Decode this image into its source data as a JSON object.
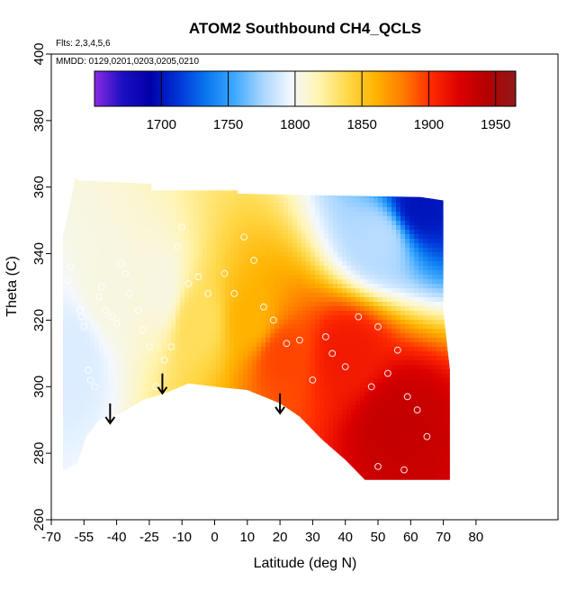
{
  "chart_data": {
    "type": "heatmap",
    "title": "ATOM2 Southbound CH4_QCLS",
    "annotations": [
      "Flts: 2,3,4,5,6",
      "MMDD: 0129,0201,0203,0205,0210"
    ],
    "xlabel": "Latitude (deg N)",
    "ylabel": "Theta (C)",
    "xlim": [
      -70,
      80
    ],
    "ylim": [
      260,
      400
    ],
    "x_tick_labels": [
      -70,
      -55,
      -40,
      -25,
      -10,
      0,
      10,
      20,
      30,
      40,
      50,
      60,
      70,
      80
    ],
    "y_ticks": [
      260,
      280,
      300,
      320,
      340,
      360,
      380,
      400
    ],
    "colorbar": {
      "min": 1650,
      "max": 1965,
      "ticks": [
        1700,
        1750,
        1800,
        1850,
        1900,
        1950
      ],
      "colors": [
        "#8a2be2",
        "#1c0fc2",
        "#0000a8",
        "#0035d8",
        "#0a78f0",
        "#3fa9ff",
        "#a9d6ff",
        "#f4f8ff",
        "#fff4b0",
        "#ffd94a",
        "#ffb300",
        "#ff7b00",
        "#ff2a00",
        "#dc0000",
        "#b40000",
        "#8f1a1a"
      ]
    },
    "arrows": [
      {
        "lat": -43,
        "theta": 289
      },
      {
        "lat": -19,
        "theta": 298
      },
      {
        "lat": 20,
        "theta": 292
      }
    ],
    "field_samples": [
      {
        "lat": -60,
        "theta": 310,
        "value": 1790
      },
      {
        "lat": -45,
        "theta": 330,
        "value": 1805
      },
      {
        "lat": -20,
        "theta": 330,
        "value": 1805
      },
      {
        "lat": -5,
        "theta": 320,
        "value": 1835
      },
      {
        "lat": 10,
        "theta": 320,
        "value": 1860
      },
      {
        "lat": 20,
        "theta": 310,
        "value": 1895
      },
      {
        "lat": 40,
        "theta": 310,
        "value": 1910
      },
      {
        "lat": 55,
        "theta": 290,
        "value": 1935
      },
      {
        "lat": 50,
        "theta": 345,
        "value": 1780
      },
      {
        "lat": 62,
        "theta": 355,
        "value": 1700
      }
    ]
  }
}
